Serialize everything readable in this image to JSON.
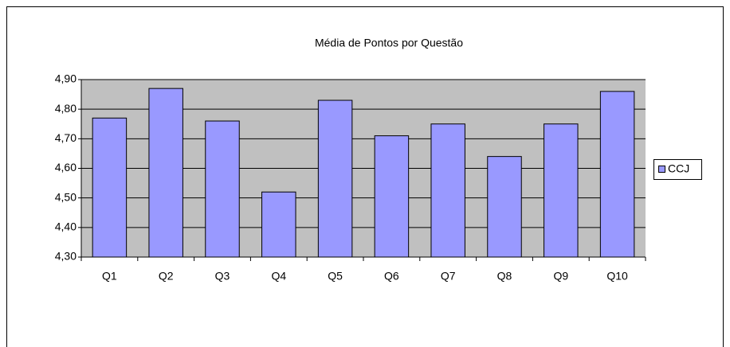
{
  "chart_data": {
    "type": "bar",
    "title": "Média de Pontos por Questão",
    "categories": [
      "Q1",
      "Q2",
      "Q3",
      "Q4",
      "Q5",
      "Q6",
      "Q7",
      "Q8",
      "Q9",
      "Q10"
    ],
    "series": [
      {
        "name": "CCJ",
        "color": "#9999ff",
        "values": [
          4.77,
          4.87,
          4.76,
          4.52,
          4.83,
          4.71,
          4.75,
          4.64,
          4.75,
          4.86
        ]
      }
    ],
    "ylim": [
      4.3,
      4.9
    ],
    "yticks": [
      {
        "value": 4.3,
        "label": "4,30"
      },
      {
        "value": 4.4,
        "label": "4,40"
      },
      {
        "value": 4.5,
        "label": "4,50"
      },
      {
        "value": 4.6,
        "label": "4,60"
      },
      {
        "value": 4.7,
        "label": "4,70"
      },
      {
        "value": 4.8,
        "label": "4,80"
      },
      {
        "value": 4.9,
        "label": "4,90"
      }
    ],
    "grid": true,
    "legend": "right",
    "plot_background": "#c0c0c0"
  }
}
